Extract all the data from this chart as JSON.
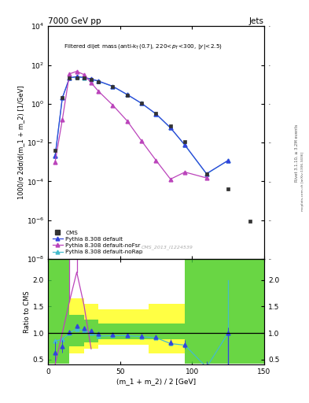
{
  "title_top": "7000 GeV pp",
  "title_right": "Jets",
  "watermark": "CMS_2013_I1224539",
  "rivet_label": "Rivet 3.1.10, ≥ 3.2M events",
  "mcplots_label": "mcplots.cern.ch [arXiv:1306.3436]",
  "xlabel": "(m_1 + m_2) / 2 [GeV]",
  "ylabel": "1000/σ 2dσ/d(m_1 + m_2) [1/GeV]",
  "ylabel_ratio": "Ratio to CMS",
  "xlim": [
    0,
    150
  ],
  "ylim_log": [
    1e-08,
    10000.0
  ],
  "ylim_ratio": [
    0.4,
    2.4
  ],
  "cms_x": [
    5,
    10,
    15,
    20,
    25,
    30,
    35,
    45,
    55,
    65,
    75,
    85,
    95,
    110,
    125,
    140
  ],
  "cms_y": [
    0.004,
    2.0,
    22.0,
    22.0,
    21.0,
    18.0,
    14.0,
    7.5,
    2.8,
    1.1,
    0.32,
    0.07,
    0.011,
    0.00025,
    4e-05,
    9e-07
  ],
  "cms_yerr_lo": [
    0.001,
    0.3,
    2.0,
    2.0,
    2.0,
    1.8,
    1.4,
    0.7,
    0.28,
    0.11,
    0.032,
    0.007,
    0.0011,
    3e-05,
    6e-06,
    1e-07
  ],
  "cms_yerr_hi": [
    0.001,
    0.3,
    2.0,
    2.0,
    2.0,
    1.8,
    1.4,
    0.7,
    0.28,
    0.11,
    0.032,
    0.007,
    0.0011,
    3e-05,
    6e-06,
    1e-07
  ],
  "py_default_x": [
    5,
    10,
    15,
    20,
    25,
    30,
    35,
    45,
    55,
    65,
    75,
    85,
    95,
    110,
    125
  ],
  "py_default_y": [
    0.002,
    2.0,
    22.0,
    25.0,
    23.0,
    19.0,
    15.0,
    8.0,
    3.0,
    1.05,
    0.3,
    0.058,
    0.0075,
    0.00025,
    0.0012
  ],
  "py_nofsr_x": [
    5,
    10,
    15,
    20,
    25,
    30,
    35,
    45,
    55,
    65,
    75,
    85,
    95,
    110
  ],
  "py_nofsr_y": [
    0.001,
    0.15,
    35.0,
    47.0,
    32.0,
    12.0,
    4.5,
    0.85,
    0.13,
    0.012,
    0.0012,
    0.00013,
    0.0003,
    0.00015
  ],
  "py_norap_x": [
    5,
    10,
    15,
    20,
    25,
    30,
    35,
    45,
    55,
    65,
    75,
    85,
    95,
    110,
    125
  ],
  "py_norap_y": [
    0.002,
    2.0,
    22.0,
    24.0,
    22.0,
    18.5,
    14.5,
    7.8,
    2.95,
    1.04,
    0.295,
    0.057,
    0.0073,
    0.00024,
    0.0012
  ],
  "ratio_default_x": [
    5,
    10,
    15,
    20,
    25,
    30,
    35,
    45,
    55,
    65,
    75,
    85,
    95,
    110,
    125
  ],
  "ratio_default_y": [
    0.63,
    0.75,
    1.02,
    1.13,
    1.09,
    1.04,
    0.98,
    0.97,
    0.96,
    0.94,
    0.92,
    0.82,
    0.78,
    0.36,
    1.0
  ],
  "ratio_default_yerr": [
    0.2,
    0.12,
    0.04,
    0.04,
    0.04,
    0.04,
    0.04,
    0.04,
    0.04,
    0.04,
    0.04,
    0.06,
    0.08,
    0.1,
    0.1
  ],
  "ratio_nofsr_x": [
    5,
    10,
    15,
    20,
    25,
    30,
    35,
    45,
    55,
    65,
    75,
    85,
    95,
    110
  ],
  "ratio_nofsr_y": [
    0.4,
    0.08,
    1.6,
    2.15,
    1.53,
    0.7,
    0.32,
    0.115,
    0.046,
    0.011,
    0.0037,
    0.0018,
    0.027,
    0.0006
  ],
  "ratio_norap_x": [
    5,
    10,
    15,
    20,
    25,
    30,
    35,
    45,
    55,
    65,
    75,
    85,
    95,
    110,
    125
  ],
  "ratio_norap_y": [
    0.85,
    0.88,
    1.0,
    1.08,
    1.05,
    1.0,
    0.94,
    0.95,
    0.95,
    0.93,
    0.91,
    0.8,
    0.77,
    0.35,
    1.0
  ],
  "color_cms": "#333333",
  "color_default": "#3344dd",
  "color_nofsr": "#bb44bb",
  "color_norap": "#44bbcc",
  "color_green": "#44cc44",
  "color_yellow": "#ffff44",
  "band_edges": [
    0,
    10,
    15,
    25,
    35,
    55,
    70,
    85,
    95,
    110,
    150
  ],
  "band_green_lo": [
    0.42,
    0.42,
    0.75,
    0.82,
    0.88,
    0.88,
    0.88,
    0.88,
    0.42,
    0.42,
    0.42
  ],
  "band_green_hi": [
    2.4,
    2.4,
    1.35,
    1.25,
    1.18,
    1.18,
    1.18,
    1.18,
    2.4,
    2.4,
    2.4
  ],
  "band_yellow_lo": [
    0.42,
    0.42,
    0.62,
    0.7,
    0.77,
    0.77,
    0.62,
    0.62,
    0.42,
    0.42,
    0.42
  ],
  "band_yellow_hi": [
    2.4,
    2.4,
    1.65,
    1.55,
    1.45,
    1.45,
    1.55,
    1.55,
    2.4,
    2.4,
    2.4
  ],
  "legend_labels": [
    "CMS",
    "Pythia 8.308 default",
    "Pythia 8.308 default-noFsr",
    "Pythia 8.308 default-noRap"
  ]
}
